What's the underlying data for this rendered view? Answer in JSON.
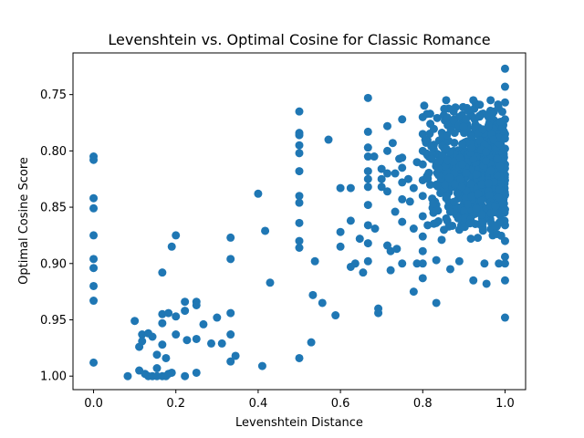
{
  "chart_data": {
    "type": "scatter",
    "title": "Levenshtein vs. Optimal Cosine for Classic Romance",
    "xlabel": "Levenshtein Distance",
    "ylabel": "Optimal Cosine Score",
    "xlim": [
      -0.05,
      1.05
    ],
    "ylim": [
      1.012,
      0.713
    ],
    "y_inverted": true,
    "grid": false,
    "legend": "none",
    "marker_color": "#1f77b4",
    "x_ticks": [
      "0.0",
      "0.2",
      "0.4",
      "0.6",
      "0.8",
      "1.0"
    ],
    "y_ticks": [
      "0.75",
      "0.80",
      "0.85",
      "0.90",
      "0.95",
      "1.00"
    ],
    "points": [
      [
        0.0,
        0.805
      ],
      [
        0.0,
        0.808
      ],
      [
        0.0,
        0.842
      ],
      [
        0.0,
        0.851
      ],
      [
        0.0,
        0.875
      ],
      [
        0.0,
        0.896
      ],
      [
        0.0,
        0.904
      ],
      [
        0.0,
        0.92
      ],
      [
        0.0,
        0.933
      ],
      [
        0.0,
        0.988
      ],
      [
        0.083,
        1.0
      ],
      [
        0.1,
        0.951
      ],
      [
        0.111,
        0.974
      ],
      [
        0.111,
        0.995
      ],
      [
        0.118,
        0.963
      ],
      [
        0.118,
        0.969
      ],
      [
        0.125,
        0.998
      ],
      [
        0.133,
        1.0
      ],
      [
        0.133,
        0.962
      ],
      [
        0.143,
        1.0
      ],
      [
        0.143,
        0.965
      ],
      [
        0.154,
        1.0
      ],
      [
        0.154,
        0.981
      ],
      [
        0.154,
        0.993
      ],
      [
        0.167,
        1.0
      ],
      [
        0.167,
        0.953
      ],
      [
        0.167,
        0.972
      ],
      [
        0.167,
        0.908
      ],
      [
        0.167,
        0.945
      ],
      [
        0.176,
        0.984
      ],
      [
        0.176,
        1.0
      ],
      [
        0.182,
        0.944
      ],
      [
        0.182,
        0.998
      ],
      [
        0.19,
        0.885
      ],
      [
        0.19,
        0.997
      ],
      [
        0.2,
        0.875
      ],
      [
        0.2,
        0.963
      ],
      [
        0.2,
        0.947
      ],
      [
        0.222,
        0.934
      ],
      [
        0.222,
        0.942
      ],
      [
        0.222,
        1.0
      ],
      [
        0.227,
        0.968
      ],
      [
        0.25,
        0.934
      ],
      [
        0.25,
        0.937
      ],
      [
        0.25,
        0.967
      ],
      [
        0.25,
        0.997
      ],
      [
        0.267,
        0.954
      ],
      [
        0.286,
        0.971
      ],
      [
        0.3,
        0.948
      ],
      [
        0.312,
        0.971
      ],
      [
        0.333,
        0.877
      ],
      [
        0.333,
        0.896
      ],
      [
        0.333,
        0.944
      ],
      [
        0.333,
        0.963
      ],
      [
        0.333,
        0.987
      ],
      [
        0.345,
        0.982
      ],
      [
        0.4,
        0.838
      ],
      [
        0.41,
        0.991
      ],
      [
        0.417,
        0.871
      ],
      [
        0.429,
        0.917
      ],
      [
        0.5,
        0.765
      ],
      [
        0.5,
        0.784
      ],
      [
        0.5,
        0.786
      ],
      [
        0.5,
        0.795
      ],
      [
        0.5,
        0.802
      ],
      [
        0.5,
        0.818
      ],
      [
        0.5,
        0.84
      ],
      [
        0.5,
        0.846
      ],
      [
        0.5,
        0.864
      ],
      [
        0.5,
        0.88
      ],
      [
        0.5,
        0.886
      ],
      [
        0.5,
        0.984
      ],
      [
        0.529,
        0.97
      ],
      [
        0.533,
        0.928
      ],
      [
        0.538,
        0.898
      ],
      [
        0.556,
        0.935
      ],
      [
        0.571,
        0.79
      ],
      [
        0.588,
        0.946
      ],
      [
        0.6,
        0.833
      ],
      [
        0.6,
        0.872
      ],
      [
        0.6,
        0.885
      ],
      [
        0.625,
        0.833
      ],
      [
        0.625,
        0.862
      ],
      [
        0.625,
        0.903
      ],
      [
        0.636,
        0.9
      ],
      [
        0.647,
        0.878
      ],
      [
        0.655,
        0.908
      ],
      [
        0.667,
        0.753
      ],
      [
        0.667,
        0.783
      ],
      [
        0.667,
        0.797
      ],
      [
        0.667,
        0.805
      ],
      [
        0.667,
        0.818
      ],
      [
        0.667,
        0.825
      ],
      [
        0.667,
        0.832
      ],
      [
        0.667,
        0.848
      ],
      [
        0.667,
        0.866
      ],
      [
        0.667,
        0.882
      ],
      [
        0.667,
        0.898
      ],
      [
        0.682,
        0.805
      ],
      [
        0.684,
        0.869
      ],
      [
        0.692,
        0.944
      ],
      [
        0.692,
        0.94
      ],
      [
        0.7,
        0.816
      ],
      [
        0.7,
        0.825
      ],
      [
        0.7,
        0.832
      ],
      [
        0.714,
        0.778
      ],
      [
        0.714,
        0.8
      ],
      [
        0.714,
        0.82
      ],
      [
        0.714,
        0.836
      ],
      [
        0.714,
        0.884
      ],
      [
        0.722,
        0.906
      ],
      [
        0.722,
        0.889
      ],
      [
        0.727,
        0.793
      ],
      [
        0.733,
        0.854
      ],
      [
        0.733,
        0.82
      ],
      [
        0.737,
        0.887
      ],
      [
        0.743,
        0.807
      ],
      [
        0.75,
        0.772
      ],
      [
        0.75,
        0.806
      ],
      [
        0.75,
        0.815
      ],
      [
        0.75,
        0.828
      ],
      [
        0.75,
        0.843
      ],
      [
        0.75,
        0.863
      ],
      [
        0.75,
        0.9
      ],
      [
        0.765,
        0.825
      ],
      [
        0.769,
        0.845
      ],
      [
        0.778,
        0.925
      ],
      [
        0.778,
        0.869
      ],
      [
        0.778,
        0.833
      ],
      [
        0.786,
        0.81
      ],
      [
        0.786,
        0.9
      ],
      [
        0.8,
        0.77
      ],
      [
        0.8,
        0.785
      ],
      [
        0.8,
        0.8
      ],
      [
        0.8,
        0.812
      ],
      [
        0.8,
        0.826
      ],
      [
        0.8,
        0.84
      ],
      [
        0.8,
        0.858
      ],
      [
        0.8,
        0.876
      ],
      [
        0.8,
        0.889
      ],
      [
        0.8,
        0.9
      ],
      [
        0.8,
        0.913
      ],
      [
        0.812,
        0.866
      ],
      [
        0.818,
        0.767
      ],
      [
        0.818,
        0.83
      ],
      [
        0.826,
        0.855
      ],
      [
        0.833,
        0.935
      ],
      [
        0.833,
        0.803
      ],
      [
        0.833,
        0.83
      ],
      [
        0.833,
        0.848
      ],
      [
        0.833,
        0.864
      ],
      [
        0.833,
        0.897
      ],
      [
        0.846,
        0.879
      ],
      [
        0.857,
        0.755
      ],
      [
        0.857,
        0.773
      ],
      [
        0.857,
        0.792
      ],
      [
        0.857,
        0.81
      ],
      [
        0.857,
        0.827
      ],
      [
        0.857,
        0.842
      ],
      [
        0.857,
        0.86
      ],
      [
        0.867,
        0.905
      ],
      [
        0.867,
        0.85
      ],
      [
        0.875,
        0.82
      ],
      [
        0.875,
        0.765
      ],
      [
        0.875,
        0.8
      ],
      [
        0.882,
        0.857
      ],
      [
        0.889,
        0.78
      ],
      [
        0.889,
        0.828
      ],
      [
        0.889,
        0.87
      ],
      [
        0.889,
        0.898
      ],
      [
        0.9,
        0.772
      ],
      [
        0.9,
        0.8
      ],
      [
        0.9,
        0.847
      ],
      [
        0.909,
        0.81
      ],
      [
        0.909,
        0.84
      ],
      [
        0.909,
        0.863
      ],
      [
        0.917,
        0.79
      ],
      [
        0.917,
        0.878
      ],
      [
        0.923,
        0.915
      ],
      [
        0.923,
        0.755
      ],
      [
        0.929,
        0.758
      ],
      [
        0.929,
        0.84
      ],
      [
        0.933,
        0.82
      ],
      [
        0.938,
        0.865
      ],
      [
        0.944,
        0.8
      ],
      [
        0.95,
        0.785
      ],
      [
        0.95,
        0.83
      ],
      [
        0.95,
        0.86
      ],
      [
        0.95,
        0.9
      ],
      [
        0.955,
        0.918
      ],
      [
        0.96,
        0.77
      ],
      [
        0.96,
        0.81
      ],
      [
        0.962,
        0.845
      ],
      [
        0.965,
        0.755
      ],
      [
        0.967,
        0.79
      ],
      [
        0.97,
        0.875
      ],
      [
        0.975,
        0.82
      ],
      [
        0.98,
        0.8
      ],
      [
        0.98,
        0.85
      ],
      [
        0.985,
        0.9
      ],
      [
        1.0,
        0.727
      ],
      [
        1.0,
        0.743
      ],
      [
        1.0,
        0.757
      ],
      [
        1.0,
        0.772
      ],
      [
        1.0,
        0.785
      ],
      [
        1.0,
        0.798
      ],
      [
        1.0,
        0.812
      ],
      [
        1.0,
        0.826
      ],
      [
        1.0,
        0.839
      ],
      [
        1.0,
        0.852
      ],
      [
        1.0,
        0.866
      ],
      [
        1.0,
        0.88
      ],
      [
        1.0,
        0.894
      ],
      [
        1.0,
        0.9
      ],
      [
        1.0,
        0.915
      ],
      [
        1.0,
        0.948
      ]
    ],
    "dense_cluster": {
      "x_range": [
        0.8,
        1.0
      ],
      "y_range": [
        0.755,
        0.88
      ],
      "count": 700
    }
  }
}
